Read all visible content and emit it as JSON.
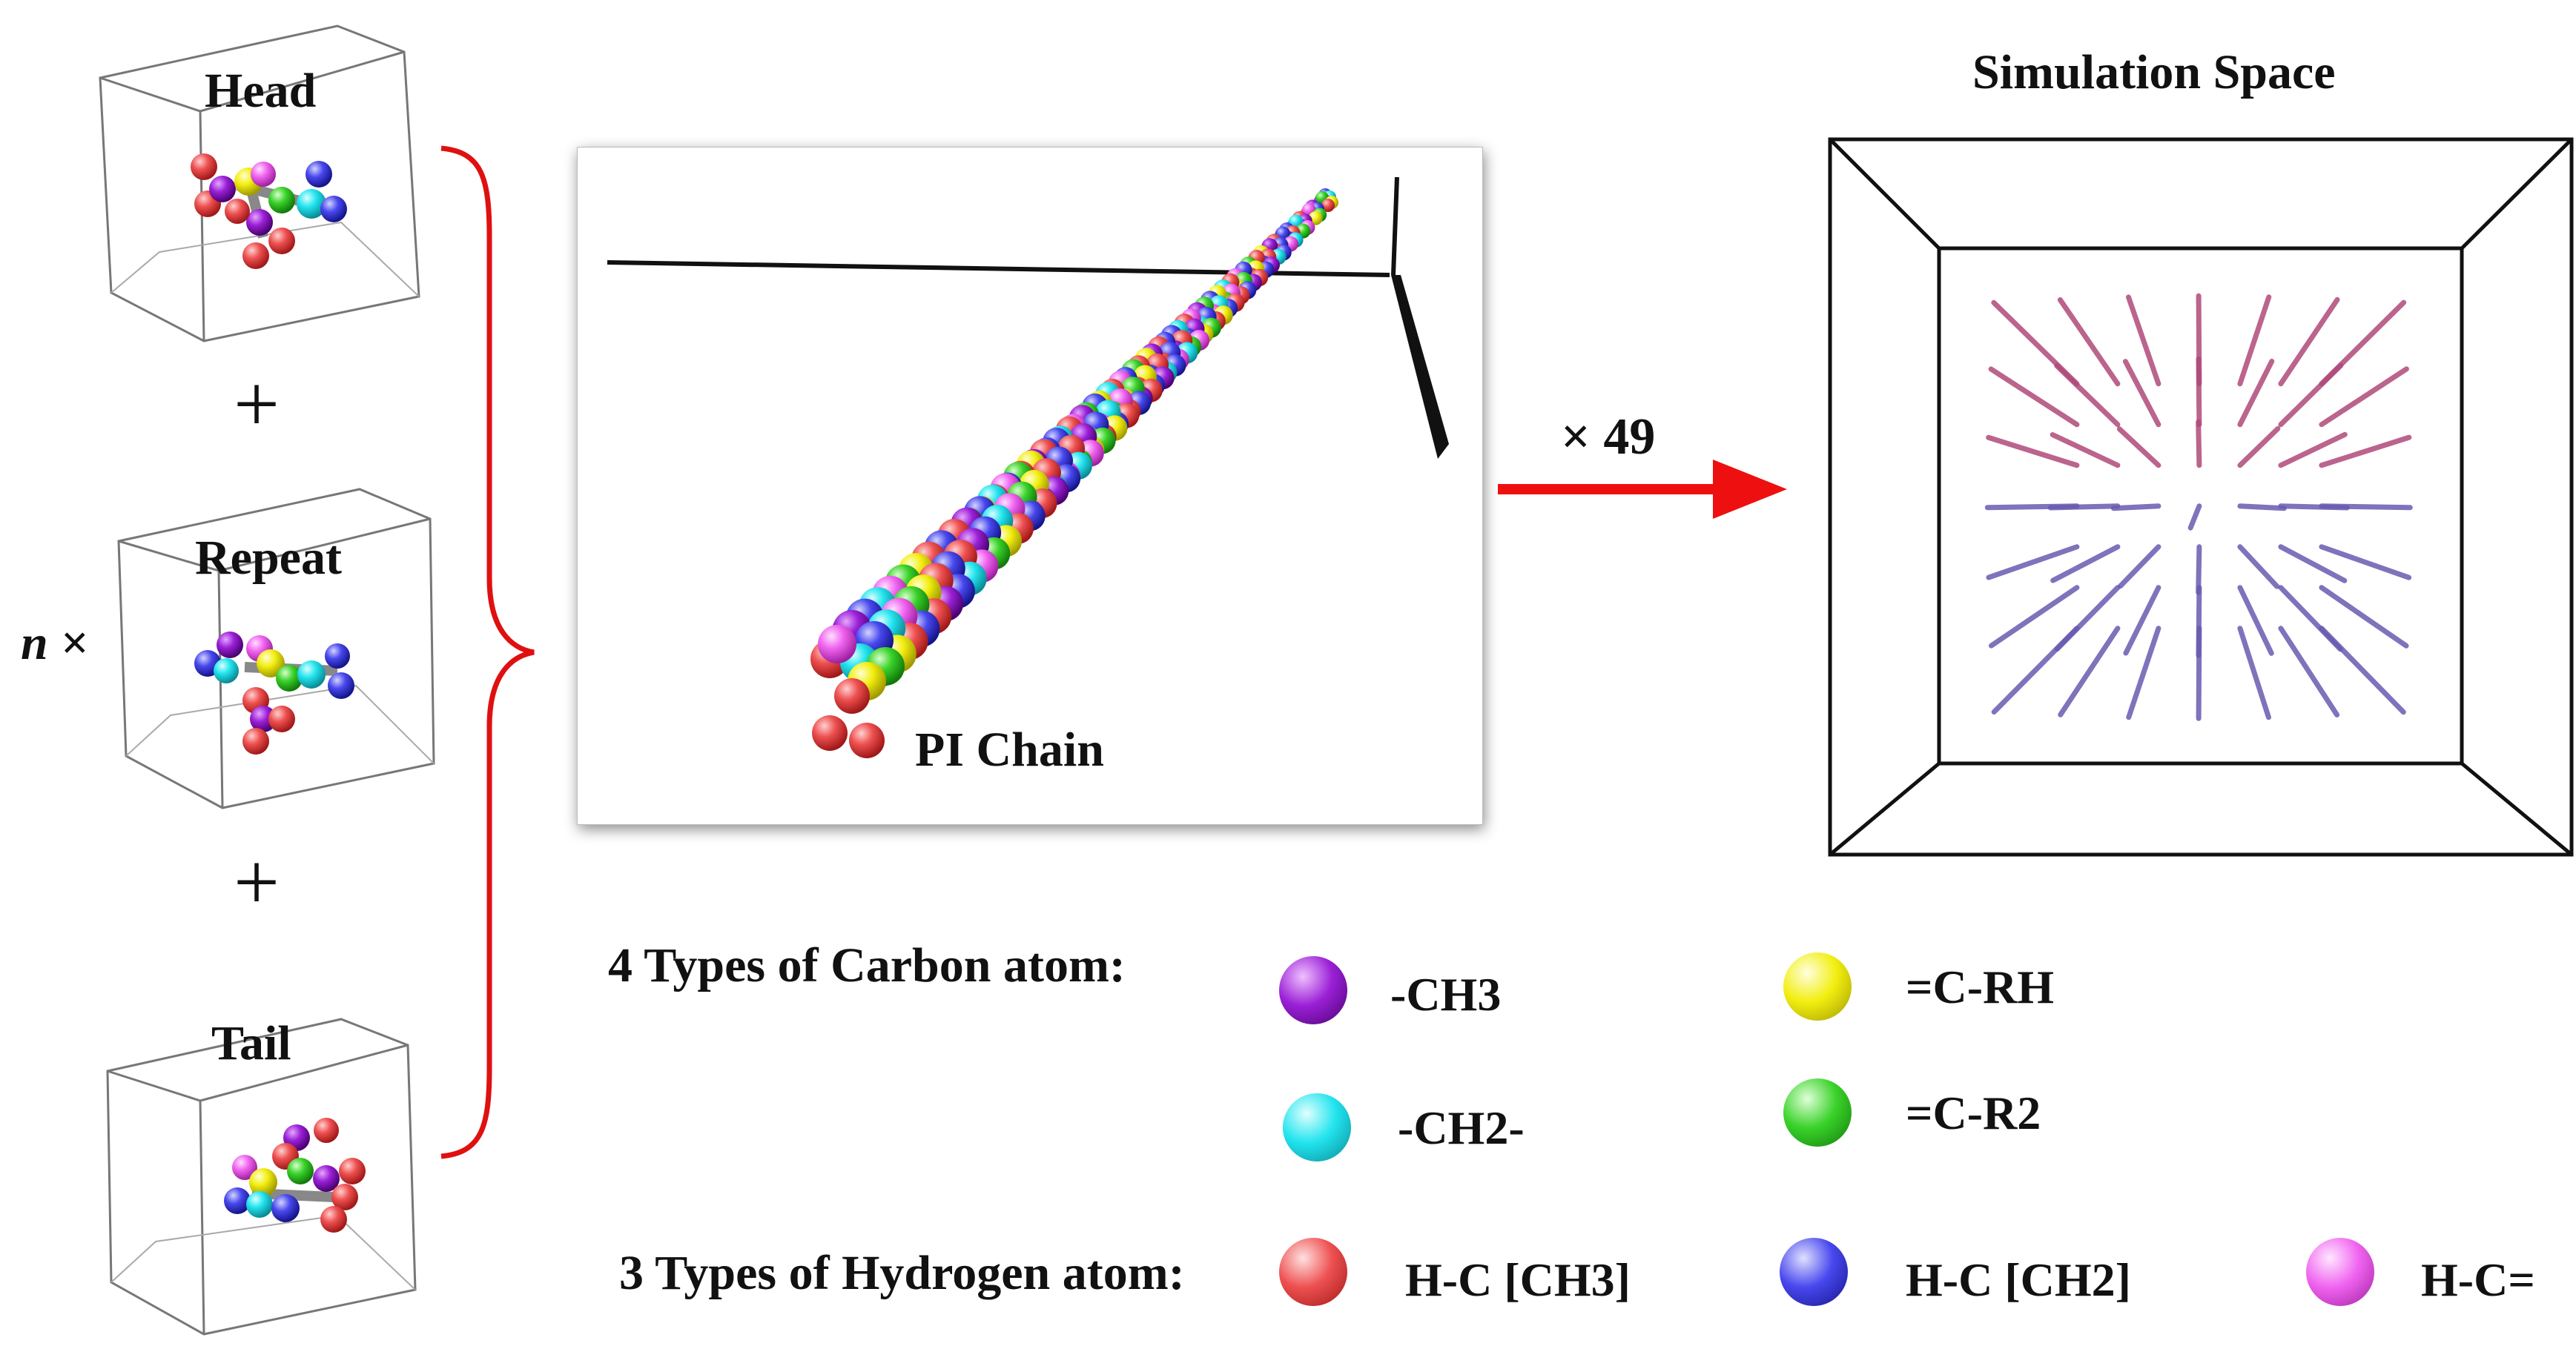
{
  "units": {
    "head_label": "Head",
    "repeat_label": "Repeat",
    "tail_label": "Tail",
    "plus_symbol": "+",
    "multiplier": "n ×"
  },
  "chain": {
    "label": "PI Chain"
  },
  "arrow": {
    "label": "× 49"
  },
  "simulation": {
    "title": "Simulation Space"
  },
  "legend": {
    "carbon_heading": "4 Types of Carbon atom:",
    "hydrogen_heading": "3 Types of Hydrogen atom:",
    "carbon_types": [
      {
        "label": "-CH3",
        "color": "#8a10c8"
      },
      {
        "label": "=C-RH",
        "color": "#f0ee10"
      },
      {
        "label": "-CH2-",
        "color": "#22e6f0"
      },
      {
        "label": "=C-R2",
        "color": "#3ad22a"
      }
    ],
    "hydrogen_types": [
      {
        "label": "H-C [CH3]",
        "color": "#ee4e4e"
      },
      {
        "label": "H-C [CH2]",
        "color": "#4444ee"
      },
      {
        "label": "H-C=",
        "color": "#f060f0"
      }
    ]
  },
  "colors": {
    "brace": "#e01010",
    "arrow": "#ee1010"
  }
}
